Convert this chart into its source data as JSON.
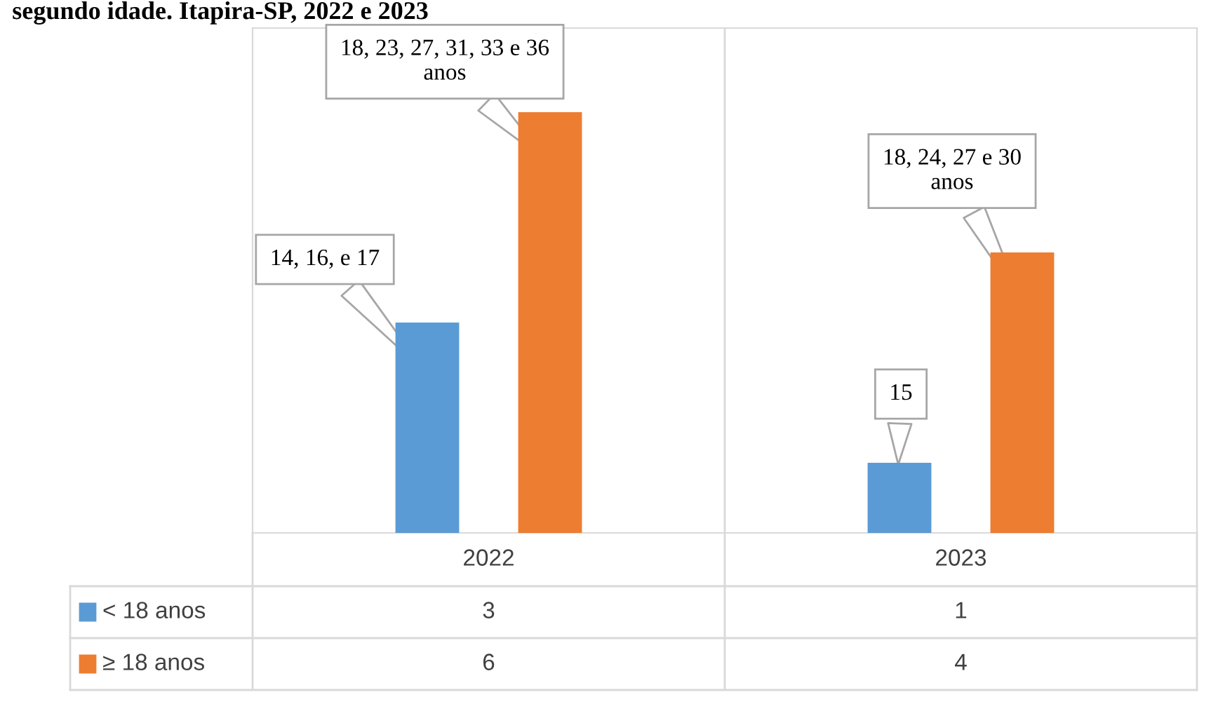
{
  "chart_data": {
    "type": "bar",
    "title": "segundo idade. Itapira-SP, 2022 e 2023",
    "categories": [
      "2022",
      "2023"
    ],
    "series": [
      {
        "name": "< 18 anos",
        "color": "#5b9bd5",
        "values": [
          3,
          1
        ]
      },
      {
        "name": "≥ 18 anos",
        "color": "#ed7d31",
        "values": [
          6,
          4
        ]
      }
    ],
    "data_labels": true,
    "legend": "bottom",
    "annotations": [
      "14, 16, e 17",
      "18, 23, 27, 31, 33 e 36\nanos",
      "15",
      "18, 24, 27 e 30\nanos"
    ]
  }
}
